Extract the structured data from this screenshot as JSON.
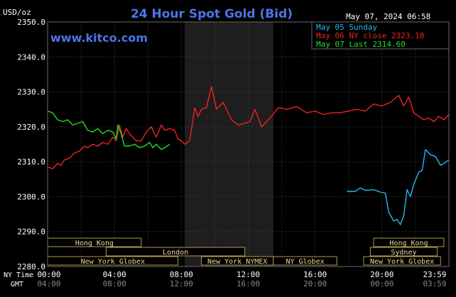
{
  "header": {
    "unit": "USD/oz",
    "title": "24 Hour Spot Gold (Bid)",
    "date": "May 07, 2024 06:58",
    "site": "www.kitco.com"
  },
  "legend": [
    {
      "text": "May 05 Sunday",
      "color": "#22bbee"
    },
    {
      "text": "May 06 NY close 2323.10",
      "color": "#ee2222"
    },
    {
      "text": "May 07 Last 2314.60",
      "color": "#22dd22"
    }
  ],
  "timeline": {
    "ny_label": "NY Time",
    "gmt_label": "GMT",
    "ny_ticks": [
      "00:00",
      "04:00",
      "08:00",
      "12:00",
      "16:00",
      "20:00",
      "23:59"
    ],
    "gmt_ticks": [
      "04:00",
      "08:00",
      "12:00",
      "16:00",
      "20:00",
      "00:00",
      "03:59"
    ]
  },
  "sessions": [
    {
      "name": "Hong Kong",
      "start": -0.5,
      "end": 5.6,
      "row": 0
    },
    {
      "name": "Hong Kong",
      "start": 19.5,
      "end": 23.7,
      "row": 0
    },
    {
      "name": "London",
      "start": 3.5,
      "end": 11.8,
      "row": 1
    },
    {
      "name": "Sydney",
      "start": 19.3,
      "end": 23.3,
      "row": 1
    },
    {
      "name": "New York Globex",
      "start": -0.2,
      "end": 7.8,
      "row": 2
    },
    {
      "name": "New York NYMEX",
      "start": 9.2,
      "end": 13.5,
      "row": 2
    },
    {
      "name": "NY Globex",
      "start": 13.5,
      "end": 17.3,
      "row": 2
    },
    {
      "name": "New York Globex",
      "start": 18.9,
      "end": 23.5,
      "row": 2
    }
  ],
  "shade": {
    "start": 8.2,
    "end": 13.5,
    "color": "#1e1e1e"
  },
  "chart_data": {
    "type": "line",
    "ylabel": "USD/oz",
    "ylim": [
      2280,
      2350
    ],
    "y_ticks": [
      "2350.0",
      "2340.0",
      "2330.0",
      "2320.0",
      "2310.0",
      "2300.0",
      "2290.0",
      "2280.0"
    ],
    "xlim_hours": [
      0,
      24
    ],
    "grid": true,
    "legend_position": "top-right",
    "series": [
      {
        "name": "May 05 Sunday",
        "color": "#22bbee",
        "x": [
          17.9,
          18.4,
          18.7,
          19.0,
          19.5,
          19.9,
          20.2,
          20.4,
          20.7,
          20.9,
          21.1,
          21.3,
          21.5,
          21.7,
          21.9,
          22.2,
          22.4,
          22.6,
          22.9,
          23.2,
          23.5,
          23.7,
          23.99
        ],
        "y": [
          2301.5,
          2301.5,
          2302.5,
          2301.8,
          2302.0,
          2301.3,
          2301.0,
          2295.5,
          2293.0,
          2293.5,
          2292.0,
          2294.5,
          2302.0,
          2300.0,
          2303.5,
          2307.0,
          2307.5,
          2313.5,
          2312.0,
          2311.5,
          2309.0,
          2309.5,
          2310.5
        ]
      },
      {
        "name": "May 06 NY close 2323.10",
        "color": "#ee2222",
        "x": [
          0.0,
          0.3,
          0.6,
          0.8,
          1.0,
          1.3,
          1.6,
          1.9,
          2.2,
          2.4,
          2.7,
          3.0,
          3.3,
          3.6,
          3.9,
          4.1,
          4.3,
          4.5,
          4.7,
          4.9,
          5.1,
          5.3,
          5.6,
          5.9,
          6.2,
          6.5,
          6.8,
          7.0,
          7.3,
          7.6,
          7.8,
          8.0,
          8.2,
          8.5,
          8.8,
          9.0,
          9.2,
          9.5,
          9.8,
          10.1,
          10.5,
          11.0,
          11.4,
          11.8,
          12.1,
          12.4,
          12.8,
          13.3,
          13.8,
          14.3,
          14.9,
          15.5,
          16.0,
          16.5,
          17.0,
          17.5,
          18.0,
          18.5,
          19.0,
          19.5,
          20.0,
          20.5,
          21.0,
          21.3,
          21.6,
          21.9,
          22.2,
          22.5,
          22.8,
          23.1,
          23.4,
          23.7,
          23.99
        ],
        "y": [
          2308.5,
          2308.0,
          2309.5,
          2309.0,
          2310.5,
          2311.0,
          2312.5,
          2313.0,
          2314.5,
          2314.0,
          2315.0,
          2314.5,
          2315.5,
          2315.0,
          2317.0,
          2316.0,
          2320.5,
          2317.0,
          2319.5,
          2318.0,
          2317.0,
          2316.0,
          2316.0,
          2318.5,
          2320.0,
          2317.0,
          2320.5,
          2319.0,
          2319.5,
          2319.0,
          2316.5,
          2316.0,
          2315.0,
          2316.0,
          2325.5,
          2323.0,
          2325.0,
          2325.5,
          2331.5,
          2325.0,
          2327.0,
          2322.0,
          2320.5,
          2321.0,
          2321.5,
          2325.0,
          2320.0,
          2322.5,
          2325.5,
          2325.0,
          2325.8,
          2324.0,
          2324.5,
          2323.5,
          2324.0,
          2324.0,
          2324.5,
          2325.0,
          2324.5,
          2326.5,
          2326.0,
          2327.0,
          2329.0,
          2326.0,
          2328.5,
          2324.0,
          2323.0,
          2322.0,
          2322.5,
          2321.5,
          2323.0,
          2322.0,
          2323.5
        ]
      },
      {
        "name": "May 07 Last 2314.60",
        "color": "#22dd22",
        "x": [
          0.0,
          0.3,
          0.6,
          0.9,
          1.2,
          1.5,
          1.8,
          2.1,
          2.4,
          2.7,
          3.0,
          3.3,
          3.6,
          3.9,
          4.1,
          4.2,
          4.4,
          4.6,
          4.9,
          5.2,
          5.5,
          5.8,
          6.1,
          6.3,
          6.5,
          6.8,
          7.0,
          7.3
        ],
        "y": [
          2324.5,
          2324.0,
          2322.0,
          2321.5,
          2322.0,
          2320.5,
          2321.0,
          2321.5,
          2319.0,
          2318.5,
          2319.5,
          2318.0,
          2319.0,
          2318.5,
          2316.5,
          2320.5,
          2318.0,
          2314.5,
          2314.5,
          2315.0,
          2314.0,
          2314.5,
          2315.5,
          2314.0,
          2315.0,
          2313.5,
          2314.0,
          2315.0
        ]
      }
    ]
  }
}
